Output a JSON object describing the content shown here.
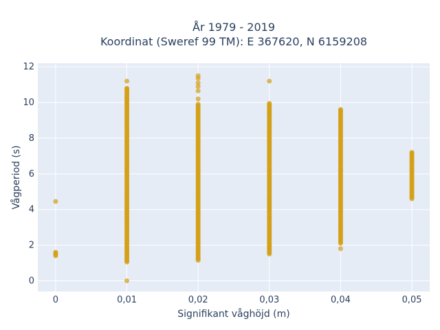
{
  "chart_data": {
    "type": "scatter",
    "title_line1": "År 1979 - 2019",
    "title_line2": "Koordinat (Sweref 99 TM): E 367620, N 6159208",
    "xlabel": "Signifikant våghöjd (m)",
    "ylabel": "Vågperiod (s)",
    "xlim": [
      -0.0025,
      0.0525
    ],
    "ylim": [
      -0.6,
      12.2
    ],
    "x_ticks": [
      0,
      0.01,
      0.02,
      0.03,
      0.04,
      0.05
    ],
    "x_tick_labels": [
      "0",
      "0,01",
      "0,02",
      "0,03",
      "0,04",
      "0,05"
    ],
    "y_ticks": [
      0,
      2,
      4,
      6,
      8,
      10,
      12
    ],
    "y_tick_labels": [
      "0",
      "2",
      "4",
      "6",
      "8",
      "10",
      "12"
    ],
    "grid": true,
    "marker_color": "#D4A017",
    "background_color": "#E5ECF6",
    "series": [
      {
        "x": 0,
        "y_min": 1.4,
        "y_max": 1.6,
        "outliers": [
          4.45
        ]
      },
      {
        "x": 0.01,
        "y_min": 1.05,
        "y_max": 10.8,
        "outliers": [
          0.0,
          11.2
        ]
      },
      {
        "x": 0.02,
        "y_min": 1.15,
        "y_max": 9.9,
        "outliers": [
          10.2,
          10.65,
          10.9,
          11.1,
          11.35,
          11.5
        ]
      },
      {
        "x": 0.03,
        "y_min": 1.5,
        "y_max": 9.95,
        "outliers": [
          11.2
        ]
      },
      {
        "x": 0.04,
        "y_min": 2.1,
        "y_max": 9.6,
        "outliers": [
          1.8
        ]
      },
      {
        "x": 0.05,
        "y_min": 4.6,
        "y_max": 7.2,
        "outliers": []
      }
    ]
  }
}
